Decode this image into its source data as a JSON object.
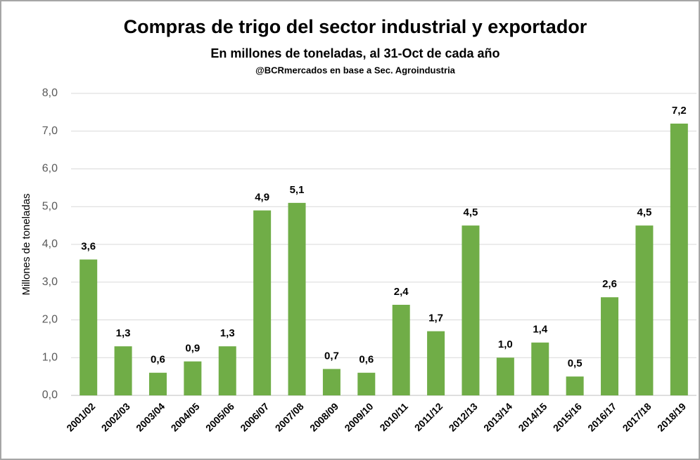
{
  "chart_data": {
    "type": "bar",
    "title": "Compras de trigo  del sector industrial y exportador",
    "subtitle": "En millones de toneladas, al 31-Oct de cada año",
    "source": "@BCRmercados en base a Sec. Agroindustria",
    "y_label": "Millones de toneladas",
    "categories": [
      "2001/02",
      "2002/03",
      "2003/04",
      "2004/05",
      "2005/06",
      "2006/07",
      "2007/08",
      "2008/09",
      "2009/10",
      "2010/11",
      "2011/12",
      "2012/13",
      "2013/14",
      "2014/15",
      "2015/16",
      "2016/17",
      "2017/18",
      "2018/19"
    ],
    "values": [
      3.6,
      1.3,
      0.6,
      0.9,
      1.3,
      4.9,
      5.1,
      0.7,
      0.6,
      2.4,
      1.7,
      4.5,
      1.0,
      1.4,
      0.5,
      2.6,
      4.5,
      7.2
    ],
    "value_labels": [
      "3,6",
      "1,3",
      "0,6",
      "0,9",
      "1,3",
      "4,9",
      "5,1",
      "0,7",
      "0,6",
      "2,4",
      "1,7",
      "4,5",
      "1,0",
      "1,4",
      "0,5",
      "2,6",
      "4,5",
      "7,2"
    ],
    "color": "#70ad47",
    "ylim": [
      0,
      8
    ],
    "yticks": [
      {
        "value": 0,
        "label": "0,0"
      },
      {
        "value": 1,
        "label": "1,0"
      },
      {
        "value": 2,
        "label": "2,0"
      },
      {
        "value": 3,
        "label": "3,0"
      },
      {
        "value": 4,
        "label": "4,0"
      },
      {
        "value": 5,
        "label": "5,0"
      },
      {
        "value": 6,
        "label": "6,0"
      },
      {
        "value": 7,
        "label": "7,0"
      },
      {
        "value": 8,
        "label": "8,0"
      }
    ],
    "grid": true
  }
}
